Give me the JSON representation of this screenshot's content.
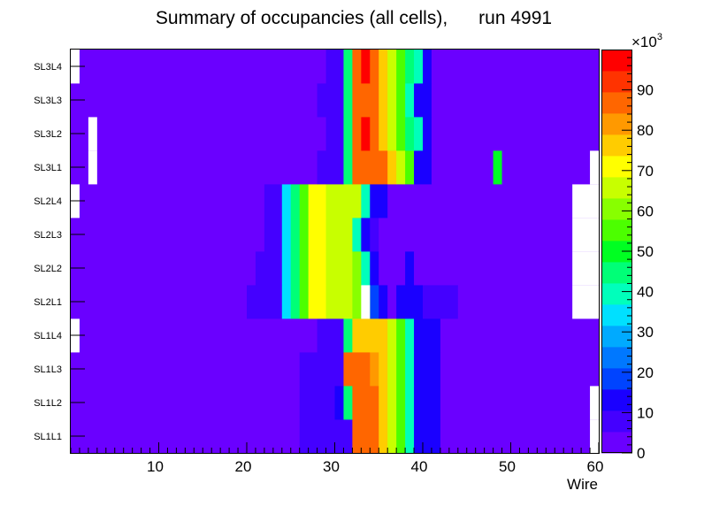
{
  "chart_data": {
    "type": "heatmap",
    "title": "Summary of occupancies (all cells),      run 4991",
    "xlabel": "Wire",
    "xlim": [
      0,
      60
    ],
    "x_ticks": [
      "10",
      "20",
      "30",
      "40",
      "50",
      "60"
    ],
    "y_labels": [
      "SL1L1",
      "SL1L2",
      "SL1L3",
      "SL1L4",
      "SL2L1",
      "SL2L2",
      "SL2L3",
      "SL2L4",
      "SL3L1",
      "SL3L2",
      "SL3L3",
      "SL3L4"
    ],
    "z_range": [
      0,
      100000
    ],
    "z_multiplier_label": "×10",
    "z_multiplier_exp": "3",
    "z_ticks": [
      "0",
      "10",
      "20",
      "30",
      "40",
      "50",
      "60",
      "70",
      "80",
      "90"
    ],
    "palette": [
      "#6a00ff",
      "#4400ff",
      "#1a00ff",
      "#0044ff",
      "#0078ff",
      "#00aaff",
      "#00e0ff",
      "#00ffbb",
      "#00ff77",
      "#00ff22",
      "#4cff00",
      "#88ff00",
      "#c8ff00",
      "#ffff00",
      "#ffcc00",
      "#ff9900",
      "#ff6600",
      "#ff3300",
      "#ff0000"
    ],
    "grid": false,
    "legend": "right colorbar",
    "rows": [
      {
        "label": "SL1L1",
        "segments": [
          [
            1,
            26,
            5
          ],
          [
            27,
            32,
            10
          ],
          [
            33,
            35,
            85
          ],
          [
            36,
            36,
            75
          ],
          [
            37,
            37,
            65
          ],
          [
            38,
            38,
            55
          ],
          [
            39,
            39,
            40
          ],
          [
            40,
            42,
            12
          ],
          [
            43,
            60,
            5
          ]
        ],
        "empty": [
          [
            60,
            60
          ]
        ]
      },
      {
        "label": "SL1L2",
        "segments": [
          [
            1,
            26,
            5
          ],
          [
            27,
            30,
            10
          ],
          [
            31,
            31,
            12
          ],
          [
            32,
            32,
            45
          ],
          [
            33,
            33,
            88
          ],
          [
            34,
            35,
            85
          ],
          [
            36,
            36,
            75
          ],
          [
            37,
            37,
            65
          ],
          [
            38,
            38,
            55
          ],
          [
            39,
            39,
            40
          ],
          [
            40,
            42,
            12
          ],
          [
            43,
            60,
            5
          ]
        ],
        "empty": [
          [
            60,
            60
          ]
        ]
      },
      {
        "label": "SL1L3",
        "segments": [
          [
            1,
            26,
            5
          ],
          [
            27,
            31,
            10
          ],
          [
            32,
            34,
            85
          ],
          [
            35,
            35,
            80
          ],
          [
            36,
            36,
            75
          ],
          [
            37,
            37,
            65
          ],
          [
            38,
            38,
            55
          ],
          [
            39,
            39,
            40
          ],
          [
            40,
            42,
            12
          ],
          [
            43,
            60,
            5
          ]
        ],
        "empty": []
      },
      {
        "label": "SL1L4",
        "segments": [
          [
            1,
            28,
            5
          ],
          [
            29,
            31,
            10
          ],
          [
            32,
            32,
            45
          ],
          [
            33,
            34,
            78
          ],
          [
            35,
            36,
            75
          ],
          [
            37,
            37,
            65
          ],
          [
            38,
            38,
            55
          ],
          [
            39,
            39,
            40
          ],
          [
            40,
            42,
            12
          ],
          [
            43,
            60,
            5
          ]
        ],
        "empty": [
          [
            1,
            1
          ]
        ]
      },
      {
        "label": "SL2L1",
        "segments": [
          [
            1,
            20,
            5
          ],
          [
            21,
            24,
            10
          ],
          [
            25,
            25,
            33
          ],
          [
            26,
            26,
            45
          ],
          [
            27,
            27,
            55
          ],
          [
            28,
            29,
            70
          ],
          [
            30,
            32,
            66
          ],
          [
            33,
            34,
            60
          ],
          [
            35,
            35,
            20
          ],
          [
            36,
            36,
            12
          ],
          [
            37,
            37,
            5
          ],
          [
            38,
            38,
            12
          ],
          [
            39,
            40,
            12
          ],
          [
            41,
            44,
            10
          ],
          [
            45,
            60,
            5
          ]
        ],
        "empty": [
          [
            34,
            34
          ],
          [
            58,
            60
          ]
        ]
      },
      {
        "label": "SL2L2",
        "segments": [
          [
            1,
            21,
            5
          ],
          [
            22,
            24,
            10
          ],
          [
            25,
            25,
            33
          ],
          [
            26,
            26,
            45
          ],
          [
            27,
            27,
            55
          ],
          [
            28,
            29,
            70
          ],
          [
            30,
            32,
            66
          ],
          [
            33,
            33,
            60
          ],
          [
            34,
            34,
            40
          ],
          [
            35,
            35,
            12
          ],
          [
            36,
            38,
            5
          ],
          [
            39,
            39,
            12
          ],
          [
            40,
            60,
            5
          ]
        ],
        "empty": [
          [
            58,
            60
          ]
        ]
      },
      {
        "label": "SL2L3",
        "segments": [
          [
            1,
            22,
            5
          ],
          [
            23,
            24,
            10
          ],
          [
            25,
            25,
            33
          ],
          [
            26,
            26,
            45
          ],
          [
            27,
            27,
            55
          ],
          [
            28,
            29,
            70
          ],
          [
            30,
            32,
            66
          ],
          [
            33,
            33,
            40
          ],
          [
            34,
            34,
            12
          ],
          [
            35,
            35,
            10
          ],
          [
            36,
            60,
            5
          ]
        ],
        "empty": [
          [
            58,
            60
          ]
        ]
      },
      {
        "label": "SL2L4",
        "segments": [
          [
            1,
            22,
            5
          ],
          [
            23,
            24,
            10
          ],
          [
            25,
            25,
            33
          ],
          [
            26,
            26,
            45
          ],
          [
            27,
            27,
            55
          ],
          [
            28,
            29,
            70
          ],
          [
            30,
            33,
            66
          ],
          [
            34,
            34,
            40
          ],
          [
            35,
            36,
            12
          ],
          [
            37,
            60,
            5
          ]
        ],
        "empty": [
          [
            1,
            1
          ],
          [
            58,
            60
          ]
        ]
      },
      {
        "label": "SL3L1",
        "segments": [
          [
            1,
            28,
            5
          ],
          [
            29,
            31,
            10
          ],
          [
            32,
            32,
            45
          ],
          [
            33,
            36,
            85
          ],
          [
            37,
            37,
            75
          ],
          [
            38,
            38,
            65
          ],
          [
            39,
            39,
            55
          ],
          [
            40,
            41,
            12
          ],
          [
            42,
            48,
            5
          ],
          [
            49,
            49,
            50
          ],
          [
            50,
            60,
            5
          ]
        ],
        "empty": [
          [
            3,
            3
          ],
          [
            60,
            60
          ]
        ]
      },
      {
        "label": "SL3L2",
        "segments": [
          [
            1,
            29,
            5
          ],
          [
            30,
            31,
            10
          ],
          [
            32,
            32,
            45
          ],
          [
            33,
            33,
            88
          ],
          [
            34,
            34,
            95
          ],
          [
            35,
            35,
            85
          ],
          [
            36,
            36,
            75
          ],
          [
            37,
            37,
            65
          ],
          [
            38,
            38,
            55
          ],
          [
            39,
            39,
            45
          ],
          [
            40,
            40,
            40
          ],
          [
            41,
            41,
            12
          ],
          [
            42,
            60,
            5
          ]
        ],
        "empty": [
          [
            3,
            3
          ]
        ]
      },
      {
        "label": "SL3L3",
        "segments": [
          [
            1,
            28,
            5
          ],
          [
            29,
            31,
            10
          ],
          [
            32,
            32,
            45
          ],
          [
            33,
            35,
            88
          ],
          [
            36,
            36,
            75
          ],
          [
            37,
            37,
            65
          ],
          [
            38,
            38,
            55
          ],
          [
            39,
            39,
            40
          ],
          [
            40,
            41,
            12
          ],
          [
            42,
            60,
            5
          ]
        ],
        "empty": []
      },
      {
        "label": "SL3L4",
        "segments": [
          [
            1,
            29,
            5
          ],
          [
            30,
            31,
            10
          ],
          [
            32,
            32,
            45
          ],
          [
            33,
            33,
            88
          ],
          [
            34,
            34,
            95
          ],
          [
            35,
            35,
            85
          ],
          [
            36,
            36,
            75
          ],
          [
            37,
            37,
            65
          ],
          [
            38,
            38,
            55
          ],
          [
            39,
            39,
            45
          ],
          [
            40,
            40,
            40
          ],
          [
            41,
            41,
            12
          ],
          [
            42,
            60,
            5
          ]
        ],
        "empty": [
          [
            1,
            1
          ]
        ]
      }
    ]
  }
}
